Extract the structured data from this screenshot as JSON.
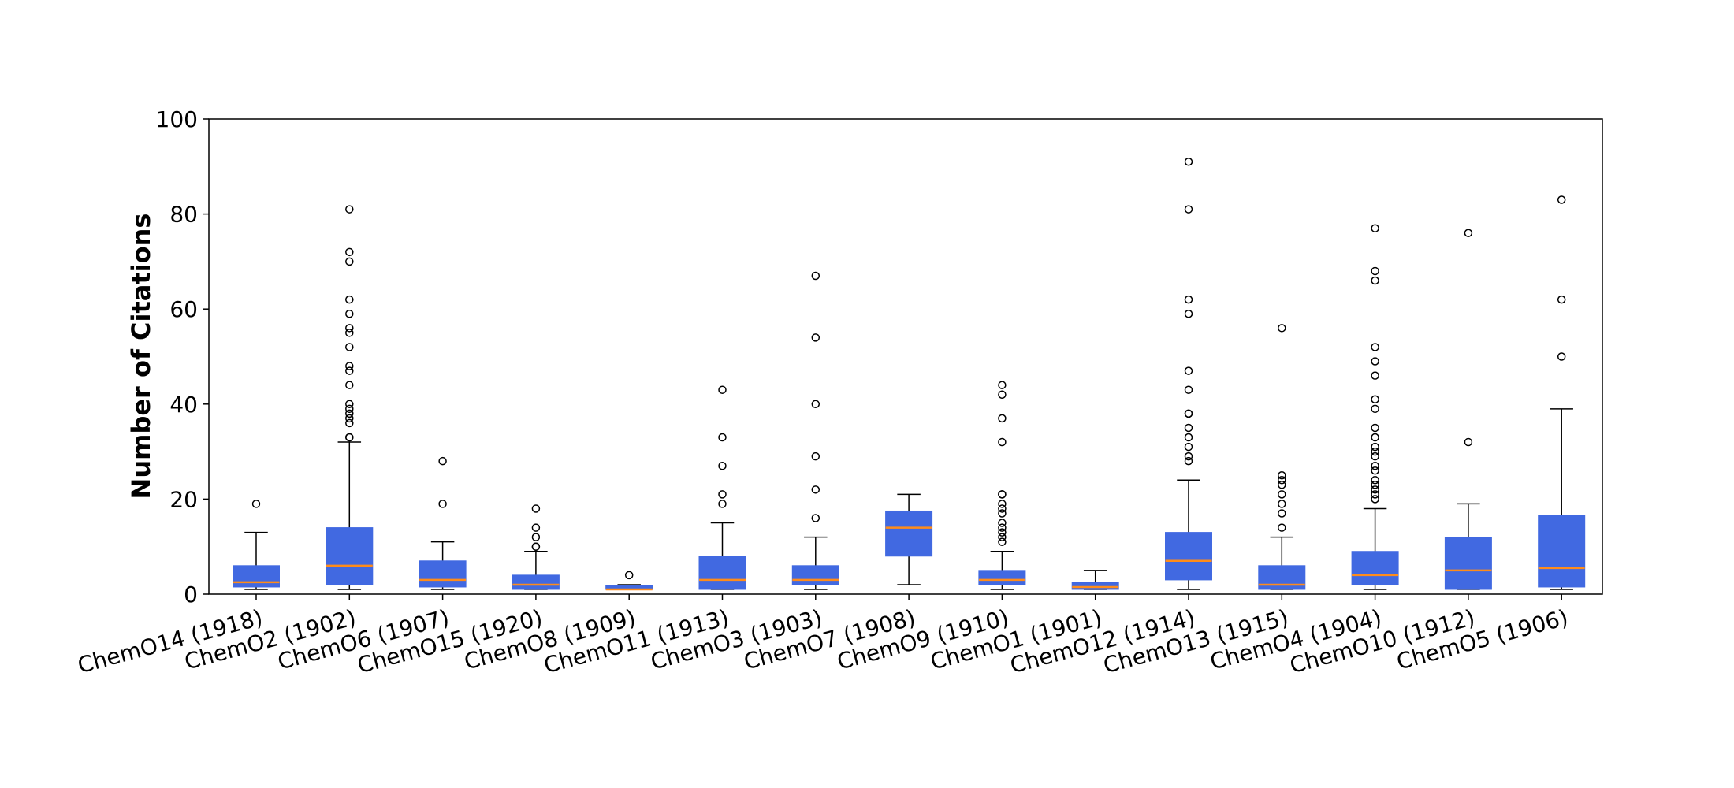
{
  "chart_data": {
    "type": "box",
    "title": "",
    "xlabel": "",
    "ylabel": "Number of Citations",
    "ylim": [
      0,
      100
    ],
    "yticks": [
      0,
      20,
      40,
      60,
      80,
      100
    ],
    "grid": false,
    "colors": {
      "box_fill": "#4169E1",
      "median": "#FF8C1A",
      "line": "#000000"
    },
    "categories": [
      "ChemO14 (1918)",
      "ChemO2 (1902)",
      "ChemO6 (1907)",
      "ChemO15 (1920)",
      "ChemO8 (1909)",
      "ChemO11 (1913)",
      "ChemO3 (1903)",
      "ChemO7 (1908)",
      "ChemO9 (1910)",
      "ChemO1 (1901)",
      "ChemO12 (1914)",
      "ChemO13 (1915)",
      "ChemO4 (1904)",
      "ChemO10 (1912)",
      "ChemO5 (1906)"
    ],
    "boxes": [
      {
        "whislo": 1,
        "q1": 1.5,
        "med": 2.5,
        "q3": 6,
        "whishi": 13,
        "fliers": [
          19
        ]
      },
      {
        "whislo": 1,
        "q1": 2,
        "med": 6,
        "q3": 14,
        "whishi": 32,
        "fliers": [
          33,
          33,
          36,
          37,
          38,
          39,
          40,
          44,
          47,
          48,
          52,
          55,
          56,
          59,
          62,
          70,
          72,
          81
        ]
      },
      {
        "whislo": 1,
        "q1": 1.5,
        "med": 3,
        "q3": 7,
        "whishi": 11,
        "fliers": [
          19,
          28
        ]
      },
      {
        "whislo": 1,
        "q1": 1,
        "med": 2,
        "q3": 4,
        "whishi": 9,
        "fliers": [
          10,
          10,
          12,
          14,
          18
        ]
      },
      {
        "whislo": 1,
        "q1": 1,
        "med": 1,
        "q3": 1.8,
        "whishi": 2,
        "fliers": [
          4
        ]
      },
      {
        "whislo": 1,
        "q1": 1,
        "med": 3,
        "q3": 8,
        "whishi": 15,
        "fliers": [
          19,
          21,
          27,
          33,
          43
        ]
      },
      {
        "whislo": 1,
        "q1": 2,
        "med": 3,
        "q3": 6,
        "whishi": 12,
        "fliers": [
          16,
          22,
          29,
          40,
          54,
          67
        ]
      },
      {
        "whislo": 2,
        "q1": 8,
        "med": 14,
        "q3": 17.5,
        "whishi": 21,
        "fliers": []
      },
      {
        "whislo": 1,
        "q1": 2,
        "med": 3,
        "q3": 5,
        "whishi": 9,
        "fliers": [
          11,
          12,
          13,
          14,
          15,
          17,
          18,
          19,
          21,
          21,
          32,
          37,
          42,
          44
        ]
      },
      {
        "whislo": 1,
        "q1": 1,
        "med": 1.5,
        "q3": 2.5,
        "whishi": 5,
        "fliers": []
      },
      {
        "whislo": 1,
        "q1": 3,
        "med": 7,
        "q3": 13,
        "whishi": 24,
        "fliers": [
          28,
          29,
          31,
          33,
          35,
          38,
          38,
          43,
          47,
          59,
          62,
          81,
          91
        ]
      },
      {
        "whislo": 1,
        "q1": 1,
        "med": 2,
        "q3": 6,
        "whishi": 12,
        "fliers": [
          14,
          17,
          19,
          21,
          23,
          24,
          25,
          56
        ]
      },
      {
        "whislo": 1,
        "q1": 2,
        "med": 4,
        "q3": 9,
        "whishi": 18,
        "fliers": [
          20,
          21,
          22,
          23,
          24,
          26,
          27,
          29,
          30,
          31,
          33,
          35,
          39,
          41,
          46,
          49,
          52,
          66,
          68,
          77
        ]
      },
      {
        "whislo": 1,
        "q1": 1,
        "med": 5,
        "q3": 12,
        "whishi": 19,
        "fliers": [
          32,
          76
        ]
      },
      {
        "whislo": 1,
        "q1": 1.5,
        "med": 5.5,
        "q3": 16.5,
        "whishi": 39,
        "fliers": [
          50,
          62,
          83
        ]
      }
    ]
  }
}
